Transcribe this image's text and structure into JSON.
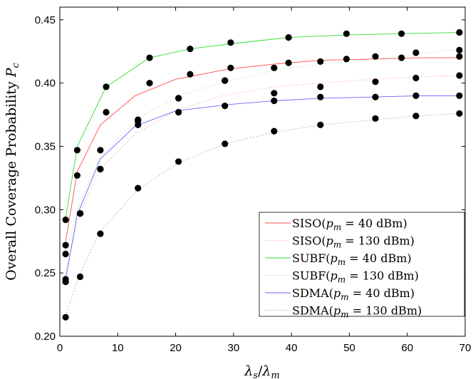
{
  "chart_data": {
    "type": "line",
    "xlabel": "λs/λm",
    "ylabel": "Overall Coverage Probability Pc",
    "xlim": [
      0,
      70
    ],
    "ylim": [
      0.2,
      0.46
    ],
    "xticks": [
      "0",
      "10",
      "20",
      "30",
      "40",
      "50",
      "60",
      "70"
    ],
    "yticks": [
      "0.20",
      "0.25",
      "0.30",
      "0.35",
      "0.40",
      "0.45"
    ],
    "grid": false,
    "legend_position": "lower-right",
    "series": [
      {
        "name": "SISO(pm = 40 dBm)",
        "color": "#ff4c4c",
        "dash": "solid",
        "curve_x": [
          1,
          3,
          7,
          13,
          20,
          29,
          37,
          45,
          54,
          62,
          69
        ],
        "curve_y": [
          0.275,
          0.33,
          0.367,
          0.39,
          0.403,
          0.411,
          0.415,
          0.418,
          0.419,
          0.42,
          0.42
        ],
        "points_x": [
          1,
          3,
          8,
          15.5,
          22.5,
          29.5,
          39.5,
          49.5,
          59,
          69
        ],
        "points_y": [
          0.272,
          0.327,
          0.377,
          0.4,
          0.407,
          0.412,
          0.416,
          0.419,
          0.42,
          0.421
        ]
      },
      {
        "name": "SISO(pm = 130 dBm)",
        "color": "#ff9999",
        "dash": "dotted",
        "curve_x": [
          1,
          3.5,
          7,
          13,
          20,
          28,
          37,
          45,
          54,
          62,
          69
        ],
        "curve_y": [
          0.25,
          0.298,
          0.332,
          0.36,
          0.378,
          0.39,
          0.397,
          0.4,
          0.403,
          0.405,
          0.406
        ],
        "points_x": [
          1,
          3.5,
          7,
          13.5,
          20.5,
          28.5,
          37,
          45,
          54.5,
          61.5,
          69
        ],
        "points_y": [
          0.243,
          0.297,
          0.332,
          0.37,
          0.388,
          0.402,
          0.392,
          0.397,
          0.401,
          0.404,
          0.406
        ]
      },
      {
        "name": "SUBF(pm = 40 dBm)",
        "color": "#33dd33",
        "dash": "solid",
        "curve_x": [
          1,
          3,
          8,
          15.5,
          22.5,
          29.5,
          39.5,
          49.5,
          59,
          69
        ],
        "curve_y": [
          0.293,
          0.35,
          0.397,
          0.42,
          0.427,
          0.431,
          0.436,
          0.438,
          0.439,
          0.44
        ],
        "points_x": [
          1,
          3,
          8,
          15.5,
          22.5,
          29.5,
          39.5,
          49.5,
          59,
          69
        ],
        "points_y": [
          0.292,
          0.347,
          0.397,
          0.42,
          0.427,
          0.432,
          0.436,
          0.439,
          0.439,
          0.44
        ]
      },
      {
        "name": "SUBF(pm = 130 dBm)",
        "color": "#99ee99",
        "dash": "dotted",
        "curve_x": [
          1,
          3.5,
          7,
          13.5,
          20.5,
          28.5,
          37,
          45,
          54.5,
          61.5,
          69
        ],
        "curve_y": [
          0.266,
          0.307,
          0.342,
          0.372,
          0.39,
          0.401,
          0.41,
          0.415,
          0.419,
          0.423,
          0.427
        ],
        "points_x": [
          1,
          3.5,
          7,
          13.5,
          20.5,
          28.5,
          37,
          45,
          54.5,
          61.5,
          69
        ],
        "points_y": [
          0.265,
          0.297,
          0.347,
          0.371,
          0.388,
          0.402,
          0.412,
          0.417,
          0.421,
          0.424,
          0.426
        ]
      },
      {
        "name": "SDMA(pm = 40 dBm)",
        "color": "#6666ff",
        "dash": "solid",
        "curve_x": [
          1,
          3,
          7,
          13,
          20,
          29,
          37,
          45,
          54,
          62,
          69
        ],
        "curve_y": [
          0.245,
          0.296,
          0.34,
          0.366,
          0.378,
          0.383,
          0.386,
          0.388,
          0.389,
          0.39,
          0.39
        ],
        "points_x": [
          1,
          3.5,
          7,
          13.5,
          20.5,
          28.5,
          37,
          45,
          54.5,
          61.5,
          69
        ],
        "points_y": [
          0.245,
          0.297,
          0.332,
          0.367,
          0.377,
          0.382,
          0.386,
          0.389,
          0.389,
          0.39,
          0.39
        ]
      },
      {
        "name": "SDMA(pm = 130 dBm)",
        "color": "#9999cc",
        "dash": "dotted",
        "curve_x": [
          1,
          3.5,
          7,
          13.5,
          20.5,
          28.5,
          37,
          45,
          54.5,
          61.5,
          69
        ],
        "curve_y": [
          0.216,
          0.25,
          0.283,
          0.316,
          0.337,
          0.352,
          0.361,
          0.367,
          0.371,
          0.374,
          0.376
        ],
        "points_x": [
          1,
          3.5,
          7,
          13.5,
          20.5,
          28.5,
          37,
          45,
          54.5,
          61.5,
          69
        ],
        "points_y": [
          0.215,
          0.247,
          0.281,
          0.317,
          0.338,
          0.352,
          0.362,
          0.367,
          0.372,
          0.374,
          0.376
        ]
      }
    ]
  }
}
